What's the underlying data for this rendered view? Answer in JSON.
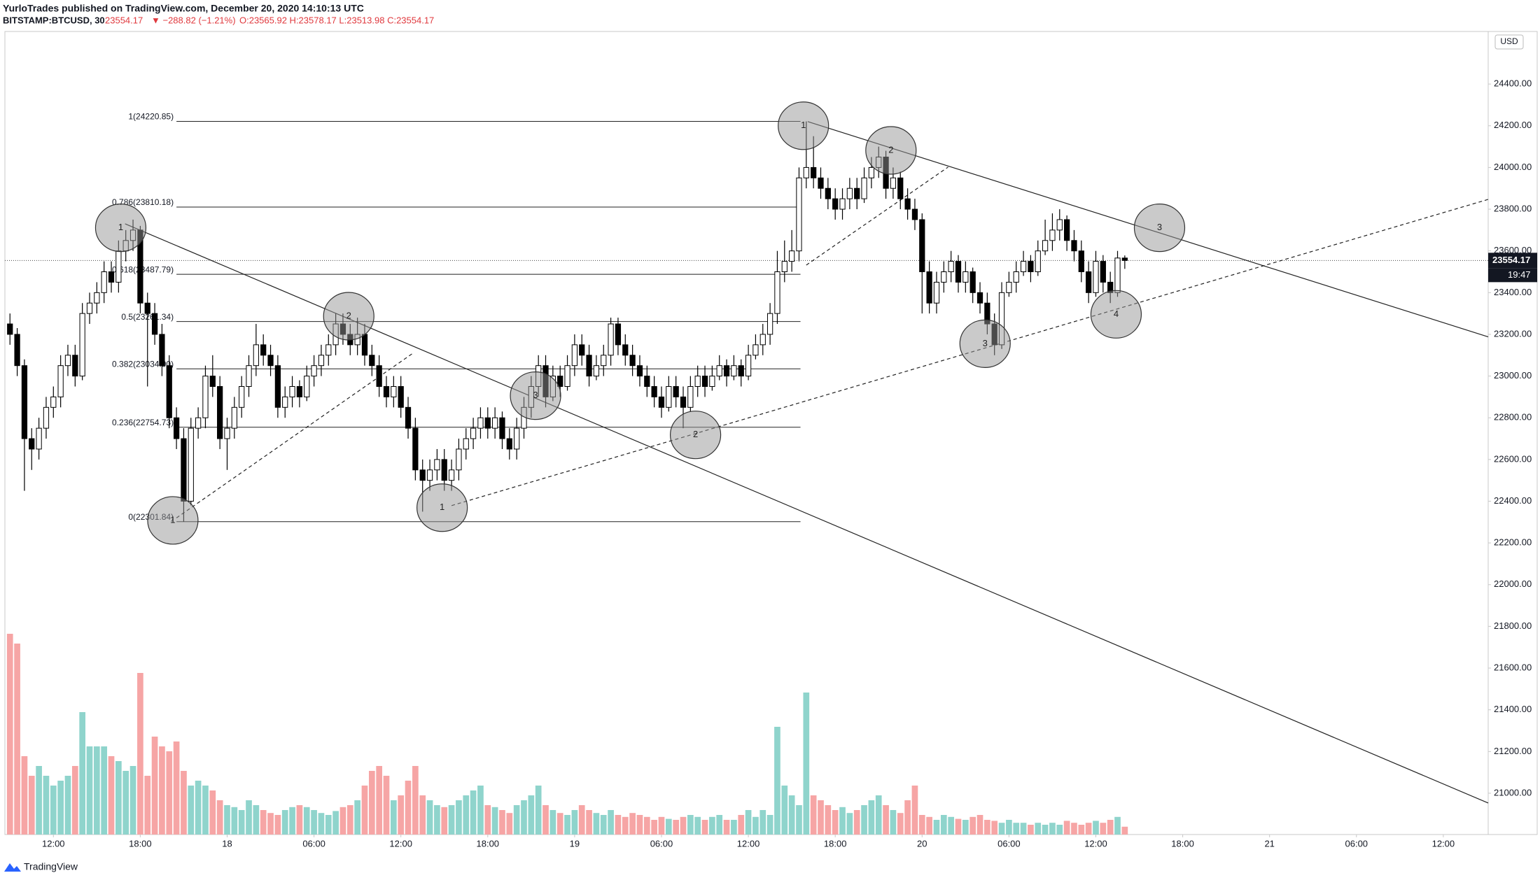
{
  "chart_data": {
    "type": "candlestick",
    "title": "YurloTrades published on TradingView.com, December 20, 2020 14:10:13 UTC",
    "symbol": "BITSTAMP:BTCUSD, 30",
    "last_text": "23554.17",
    "change": "▼ −288.82 (−1.21%)",
    "ohlc_text": "O:23565.92 H:23578.17 L:23513.98 C:23554.17",
    "currency": "USD",
    "countdown": "19:47",
    "footer": "TradingView",
    "last_price": 23554.17,
    "up_color": "#ffffff",
    "down_color": "#000000",
    "volume_up_color": "#8fd4cc",
    "volume_down_color": "#f6a5a5",
    "xlim": [
      -0.7,
      204.2
    ],
    "ylim": [
      20802,
      24652
    ],
    "xticks": [
      {
        "value": 6,
        "label": "12:00"
      },
      {
        "value": 18,
        "label": "18:00"
      },
      {
        "value": 30,
        "label": "18"
      },
      {
        "value": 42,
        "label": "06:00"
      },
      {
        "value": 54,
        "label": "12:00"
      },
      {
        "value": 66,
        "label": "18:00"
      },
      {
        "value": 78,
        "label": "19"
      },
      {
        "value": 90,
        "label": "06:00"
      },
      {
        "value": 102,
        "label": "12:00"
      },
      {
        "value": 114,
        "label": "18:00"
      },
      {
        "value": 126,
        "label": "20"
      },
      {
        "value": 138,
        "label": "06:00"
      },
      {
        "value": 150,
        "label": "12:00"
      },
      {
        "value": 162,
        "label": "18:00"
      },
      {
        "value": 174,
        "label": "21"
      },
      {
        "value": 186,
        "label": "06:00"
      },
      {
        "value": 198,
        "label": "12:00"
      }
    ],
    "yticks": [
      {
        "value": 21000,
        "label": "21000.00"
      },
      {
        "value": 21200,
        "label": "21200.00"
      },
      {
        "value": 21400,
        "label": "21400.00"
      },
      {
        "value": 21600,
        "label": "21600.00"
      },
      {
        "value": 21800,
        "label": "21800.00"
      },
      {
        "value": 22000,
        "label": "22000.00"
      },
      {
        "value": 22200,
        "label": "22200.00"
      },
      {
        "value": 22400,
        "label": "22400.00"
      },
      {
        "value": 22600,
        "label": "22600.00"
      },
      {
        "value": 22800,
        "label": "22800.00"
      },
      {
        "value": 23000,
        "label": "23000.00"
      },
      {
        "value": 23200,
        "label": "23200.00"
      },
      {
        "value": 23400,
        "label": "23400.00"
      },
      {
        "value": 23600,
        "label": "23600.00"
      },
      {
        "value": 23800,
        "label": "23800.00"
      },
      {
        "value": 24000,
        "label": "24000.00"
      },
      {
        "value": 24200,
        "label": "24200.00"
      },
      {
        "value": 24400,
        "label": "24400.00"
      }
    ],
    "fib_x": [
      23,
      109.2
    ],
    "fib_levels": [
      {
        "value": 24220.85,
        "label": "1(24220.85)"
      },
      {
        "value": 23810.18,
        "label": "0.786(23810.18)"
      },
      {
        "value": 23487.79,
        "label": "0.618(23487.79)"
      },
      {
        "value": 23261.34,
        "label": "0.5(23261.34)"
      },
      {
        "value": 23034.9,
        "label": "0.382(23034.90)"
      },
      {
        "value": 22754.73,
        "label": "0.236(22754.73)"
      },
      {
        "value": 22301.84,
        "label": "0(22301.84)"
      }
    ],
    "trendlines": [
      {
        "style": "solid",
        "points": [
          [
            15.9,
            23730
          ],
          [
            204.2,
            20953
          ]
        ]
      },
      {
        "style": "solid",
        "points": [
          [
            110.2,
            24220
          ],
          [
            204.2,
            23188
          ]
        ]
      },
      {
        "style": "dashed",
        "points": [
          [
            23,
            22320
          ],
          [
            55.6,
            23108
          ]
        ]
      },
      {
        "style": "dashed",
        "points": [
          [
            61,
            22379
          ],
          [
            204.2,
            23847
          ]
        ]
      },
      {
        "style": "dashed",
        "points": [
          [
            110,
            23532
          ],
          [
            129.6,
            24002
          ]
        ]
      }
    ],
    "markers": [
      {
        "text": "1",
        "x": 15.3,
        "y": 23711
      },
      {
        "text": "1",
        "x": 22.5,
        "y": 22308
      },
      {
        "text": "2",
        "x": 46.8,
        "y": 23287
      },
      {
        "text": "3",
        "x": 72.6,
        "y": 22906
      },
      {
        "text": "1",
        "x": 59.7,
        "y": 22369
      },
      {
        "text": "2",
        "x": 94.7,
        "y": 22718
      },
      {
        "text": "1",
        "x": 109.6,
        "y": 24200
      },
      {
        "text": "2",
        "x": 121.7,
        "y": 24082
      },
      {
        "text": "3",
        "x": 134.7,
        "y": 23155
      },
      {
        "text": "3",
        "x": 158.8,
        "y": 23711
      },
      {
        "text": "4",
        "x": 152.8,
        "y": 23296
      }
    ],
    "ohlc": [
      [
        23250,
        23300,
        23150,
        23200
      ],
      [
        23200,
        23230,
        23000,
        23050
      ],
      [
        23050,
        23080,
        22450,
        22700
      ],
      [
        22700,
        22750,
        22550,
        22650
      ],
      [
        22650,
        22800,
        22600,
        22750
      ],
      [
        22750,
        22900,
        22700,
        22850
      ],
      [
        22850,
        22950,
        22800,
        22900
      ],
      [
        22900,
        23100,
        22850,
        23050
      ],
      [
        23050,
        23150,
        23000,
        23100
      ],
      [
        23100,
        23150,
        22950,
        23000
      ],
      [
        23000,
        23350,
        22980,
        23300
      ],
      [
        23300,
        23400,
        23250,
        23350
      ],
      [
        23350,
        23450,
        23300,
        23400
      ],
      [
        23400,
        23550,
        23350,
        23500
      ],
      [
        23500,
        23550,
        23400,
        23450
      ],
      [
        23450,
        23650,
        23400,
        23600
      ],
      [
        23600,
        23700,
        23550,
        23650
      ],
      [
        23650,
        23750,
        23600,
        23700
      ],
      [
        23700,
        23720,
        23300,
        23350
      ],
      [
        23350,
        23400,
        22950,
        23300
      ],
      [
        23300,
        23350,
        23150,
        23200
      ],
      [
        23200,
        23250,
        23000,
        23050
      ],
      [
        23050,
        23100,
        22750,
        22800
      ],
      [
        22800,
        22850,
        22650,
        22700
      ],
      [
        22700,
        22750,
        22301.84,
        22400
      ],
      [
        22400,
        22800,
        22380,
        22750
      ],
      [
        22750,
        22850,
        22700,
        22800
      ],
      [
        22800,
        23050,
        22750,
        23000
      ],
      [
        23000,
        23100,
        22900,
        22950
      ],
      [
        22950,
        23000,
        22650,
        22700
      ],
      [
        22700,
        22800,
        22550,
        22750
      ],
      [
        22750,
        22900,
        22700,
        22850
      ],
      [
        22850,
        23000,
        22800,
        22950
      ],
      [
        22950,
        23100,
        22900,
        23050
      ],
      [
        23050,
        23250,
        23000,
        23150
      ],
      [
        23150,
        23200,
        23050,
        23100
      ],
      [
        23100,
        23150,
        23000,
        23050
      ],
      [
        23050,
        23100,
        22800,
        22850
      ],
      [
        22850,
        22950,
        22800,
        22900
      ],
      [
        22900,
        23000,
        22850,
        22950
      ],
      [
        22950,
        22980,
        22850,
        22900
      ],
      [
        22900,
        23050,
        22880,
        23000
      ],
      [
        23000,
        23100,
        22950,
        23050
      ],
      [
        23050,
        23150,
        23000,
        23100
      ],
      [
        23100,
        23200,
        23050,
        23150
      ],
      [
        23150,
        23300,
        23100,
        23250
      ],
      [
        23250,
        23300,
        23150,
        23200
      ],
      [
        23200,
        23250,
        23100,
        23150
      ],
      [
        23150,
        23280,
        23100,
        23200
      ],
      [
        23200,
        23250,
        23050,
        23100
      ],
      [
        23100,
        23150,
        23000,
        23050
      ],
      [
        23050,
        23100,
        22900,
        22950
      ],
      [
        22950,
        23000,
        22850,
        22900
      ],
      [
        22900,
        23000,
        22850,
        22950
      ],
      [
        22950,
        23000,
        22800,
        22850
      ],
      [
        22850,
        22900,
        22700,
        22750
      ],
      [
        22750,
        22800,
        22500,
        22550
      ],
      [
        22550,
        22600,
        22350,
        22500
      ],
      [
        22500,
        22600,
        22450,
        22550
      ],
      [
        22550,
        22650,
        22500,
        22600
      ],
      [
        22600,
        22650,
        22450,
        22500
      ],
      [
        22500,
        22600,
        22450,
        22550
      ],
      [
        22550,
        22700,
        22500,
        22650
      ],
      [
        22650,
        22750,
        22600,
        22700
      ],
      [
        22700,
        22800,
        22650,
        22750
      ],
      [
        22750,
        22850,
        22700,
        22800
      ],
      [
        22800,
        22850,
        22700,
        22750
      ],
      [
        22750,
        22850,
        22700,
        22800
      ],
      [
        22800,
        22830,
        22650,
        22700
      ],
      [
        22700,
        22750,
        22600,
        22650
      ],
      [
        22650,
        22800,
        22600,
        22750
      ],
      [
        22750,
        22900,
        22700,
        22850
      ],
      [
        22850,
        23000,
        22800,
        22950
      ],
      [
        22950,
        23100,
        22900,
        23050
      ],
      [
        23050,
        23100,
        22850,
        22900
      ],
      [
        22900,
        23050,
        22880,
        23000
      ],
      [
        23000,
        23050,
        22900,
        22950
      ],
      [
        22950,
        23100,
        22930,
        23050
      ],
      [
        23050,
        23200,
        23000,
        23150
      ],
      [
        23150,
        23200,
        23050,
        23100
      ],
      [
        23100,
        23150,
        22950,
        23000
      ],
      [
        23000,
        23100,
        22980,
        23050
      ],
      [
        23050,
        23150,
        23000,
        23100
      ],
      [
        23100,
        23280,
        23050,
        23250
      ],
      [
        23250,
        23280,
        23100,
        23150
      ],
      [
        23150,
        23200,
        23050,
        23100
      ],
      [
        23100,
        23150,
        23000,
        23050
      ],
      [
        23050,
        23100,
        22950,
        23000
      ],
      [
        23000,
        23050,
        22900,
        22950
      ],
      [
        22950,
        23000,
        22850,
        22900
      ],
      [
        22900,
        22950,
        22800,
        22850
      ],
      [
        22850,
        23000,
        22830,
        22950
      ],
      [
        22950,
        23000,
        22850,
        22900
      ],
      [
        22900,
        22950,
        22750,
        22850
      ],
      [
        22850,
        23000,
        22830,
        22950
      ],
      [
        22950,
        23050,
        22900,
        23000
      ],
      [
        23000,
        23050,
        22900,
        22950
      ],
      [
        22950,
        23050,
        22930,
        23000
      ],
      [
        23000,
        23100,
        22980,
        23050
      ],
      [
        23050,
        23080,
        22950,
        23000
      ],
      [
        23000,
        23100,
        22980,
        23050
      ],
      [
        23050,
        23080,
        22950,
        23000
      ],
      [
        23000,
        23150,
        22980,
        23100
      ],
      [
        23100,
        23200,
        23080,
        23150
      ],
      [
        23150,
        23250,
        23100,
        23200
      ],
      [
        23200,
        23350,
        23150,
        23300
      ],
      [
        23300,
        23600,
        23250,
        23500
      ],
      [
        23500,
        23650,
        23450,
        23550
      ],
      [
        23550,
        23700,
        23500,
        23600
      ],
      [
        23600,
        24000,
        23550,
        23950
      ],
      [
        23950,
        24220.85,
        23900,
        24000
      ],
      [
        24000,
        24150,
        23900,
        23950
      ],
      [
        23950,
        24000,
        23850,
        23900
      ],
      [
        23900,
        23950,
        23800,
        23850
      ],
      [
        23850,
        23900,
        23750,
        23800
      ],
      [
        23800,
        23900,
        23750,
        23850
      ],
      [
        23850,
        23950,
        23800,
        23900
      ],
      [
        23900,
        23950,
        23800,
        23850
      ],
      [
        23850,
        24000,
        23830,
        23950
      ],
      [
        23950,
        24050,
        23900,
        24000
      ],
      [
        24000,
        24100,
        23950,
        24050
      ],
      [
        24050,
        24080,
        23850,
        23900
      ],
      [
        23900,
        24000,
        23850,
        23950
      ],
      [
        23950,
        23980,
        23800,
        23850
      ],
      [
        23850,
        23900,
        23750,
        23800
      ],
      [
        23800,
        23850,
        23700,
        23750
      ],
      [
        23750,
        23780,
        23300,
        23500
      ],
      [
        23500,
        23550,
        23300,
        23350
      ],
      [
        23350,
        23500,
        23300,
        23450
      ],
      [
        23450,
        23550,
        23400,
        23500
      ],
      [
        23500,
        23600,
        23450,
        23550
      ],
      [
        23550,
        23580,
        23400,
        23450
      ],
      [
        23450,
        23550,
        23400,
        23500
      ],
      [
        23500,
        23520,
        23350,
        23400
      ],
      [
        23400,
        23450,
        23300,
        23350
      ],
      [
        23350,
        23400,
        23200,
        23250
      ],
      [
        23250,
        23300,
        23100,
        23150
      ],
      [
        23150,
        23450,
        23130,
        23400
      ],
      [
        23400,
        23500,
        23380,
        23450
      ],
      [
        23450,
        23550,
        23400,
        23500
      ],
      [
        23500,
        23600,
        23480,
        23550
      ],
      [
        23550,
        23580,
        23450,
        23500
      ],
      [
        23500,
        23650,
        23480,
        23600
      ],
      [
        23600,
        23750,
        23580,
        23650
      ],
      [
        23650,
        23780,
        23600,
        23700
      ],
      [
        23700,
        23800,
        23650,
        23750
      ],
      [
        23750,
        23770,
        23600,
        23650
      ],
      [
        23650,
        23700,
        23550,
        23600
      ],
      [
        23600,
        23650,
        23450,
        23500
      ],
      [
        23500,
        23550,
        23350,
        23400
      ],
      [
        23400,
        23600,
        23380,
        23550
      ],
      [
        23550,
        23580,
        23400,
        23450
      ],
      [
        23450,
        23500,
        23350,
        23400
      ],
      [
        23400,
        23600,
        23380,
        23565.92
      ],
      [
        23565.92,
        23578.17,
        23513.98,
        23554.17
      ]
    ],
    "volume": [
      205,
      195,
      80,
      60,
      70,
      60,
      50,
      55,
      60,
      70,
      125,
      90,
      90,
      90,
      80,
      75,
      65,
      70,
      165,
      60,
      100,
      90,
      85,
      95,
      65,
      50,
      55,
      50,
      45,
      35,
      30,
      28,
      25,
      35,
      30,
      25,
      22,
      20,
      25,
      28,
      30,
      28,
      25,
      22,
      20,
      24,
      28,
      30,
      35,
      50,
      65,
      70,
      60,
      35,
      40,
      55,
      70,
      40,
      35,
      30,
      28,
      30,
      35,
      40,
      45,
      50,
      30,
      28,
      25,
      22,
      30,
      35,
      40,
      50,
      30,
      25,
      22,
      20,
      25,
      30,
      25,
      22,
      20,
      25,
      20,
      18,
      22,
      20,
      18,
      15,
      18,
      16,
      15,
      18,
      20,
      18,
      15,
      18,
      20,
      15,
      15,
      20,
      25,
      18,
      25,
      20,
      110,
      50,
      40,
      30,
      145,
      40,
      35,
      30,
      25,
      28,
      22,
      25,
      30,
      35,
      40,
      30,
      25,
      22,
      35,
      50,
      20,
      18,
      15,
      20,
      18,
      16,
      15,
      18,
      20,
      15,
      14,
      12,
      15,
      12,
      12,
      10,
      12,
      10,
      12,
      10,
      14,
      12,
      10,
      12,
      14,
      12,
      15,
      18,
      8
    ]
  }
}
